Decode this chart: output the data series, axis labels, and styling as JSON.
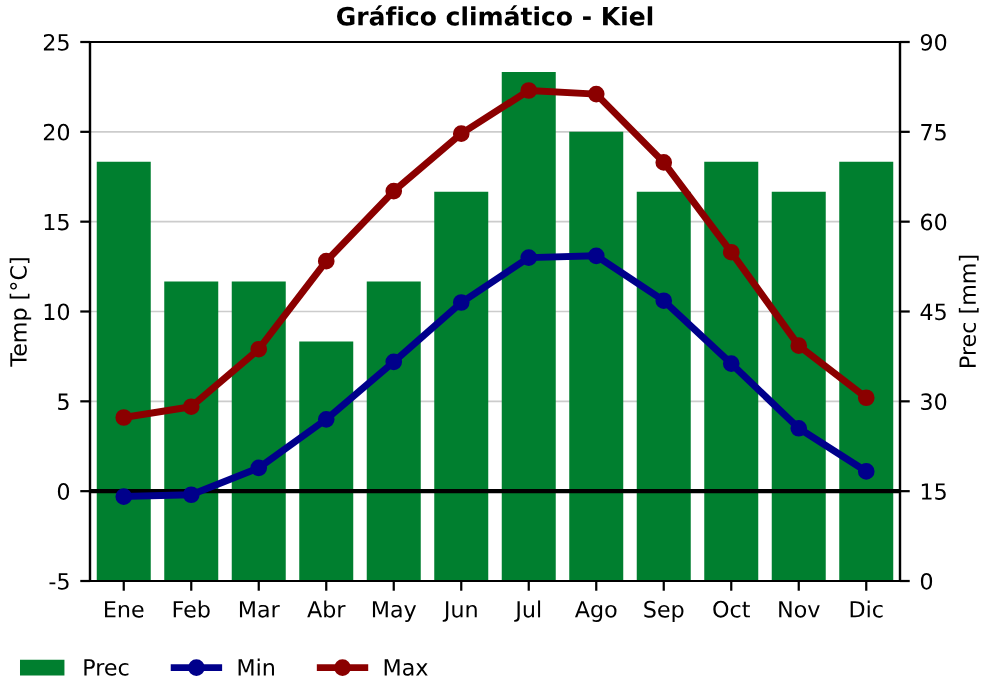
{
  "chart_data": {
    "type": "line",
    "title": "Gráfico climático - Kiel",
    "ylabel": "Temp [°C]",
    "y2label": "Prec [mm]",
    "categories": [
      "Ene",
      "Feb",
      "Mar",
      "Abr",
      "May",
      "Jun",
      "Jul",
      "Ago",
      "Sep",
      "Oct",
      "Nov",
      "Dic"
    ],
    "series": [
      {
        "name": "Prec",
        "type": "bar",
        "axis": "y2",
        "color": "#007f2f",
        "values": [
          70,
          50,
          50,
          40,
          50,
          65,
          85,
          75,
          65,
          70,
          65,
          70
        ]
      },
      {
        "name": "Min",
        "color": "#00008b",
        "values": [
          -0.3,
          -0.2,
          1.3,
          4.0,
          7.2,
          10.5,
          13.0,
          13.1,
          10.6,
          7.1,
          3.5,
          1.1
        ]
      },
      {
        "name": "Max",
        "color": "#8b0000",
        "values": [
          4.1,
          4.7,
          7.9,
          12.8,
          16.7,
          19.9,
          22.3,
          22.1,
          18.3,
          13.3,
          8.1,
          5.2
        ]
      }
    ],
    "ylim": [
      -5,
      25
    ],
    "yticks": [
      -5,
      0,
      5,
      10,
      15,
      20,
      25
    ],
    "y2lim": [
      0,
      90
    ],
    "y2ticks": [
      0,
      15,
      30,
      45,
      60,
      75,
      90
    ],
    "ref_lines": [
      {
        "axis": "y",
        "value": 0,
        "color": "#000000"
      }
    ],
    "grid": "y",
    "legend": "bottom left",
    "marker": "circle",
    "line_style": "solid"
  }
}
